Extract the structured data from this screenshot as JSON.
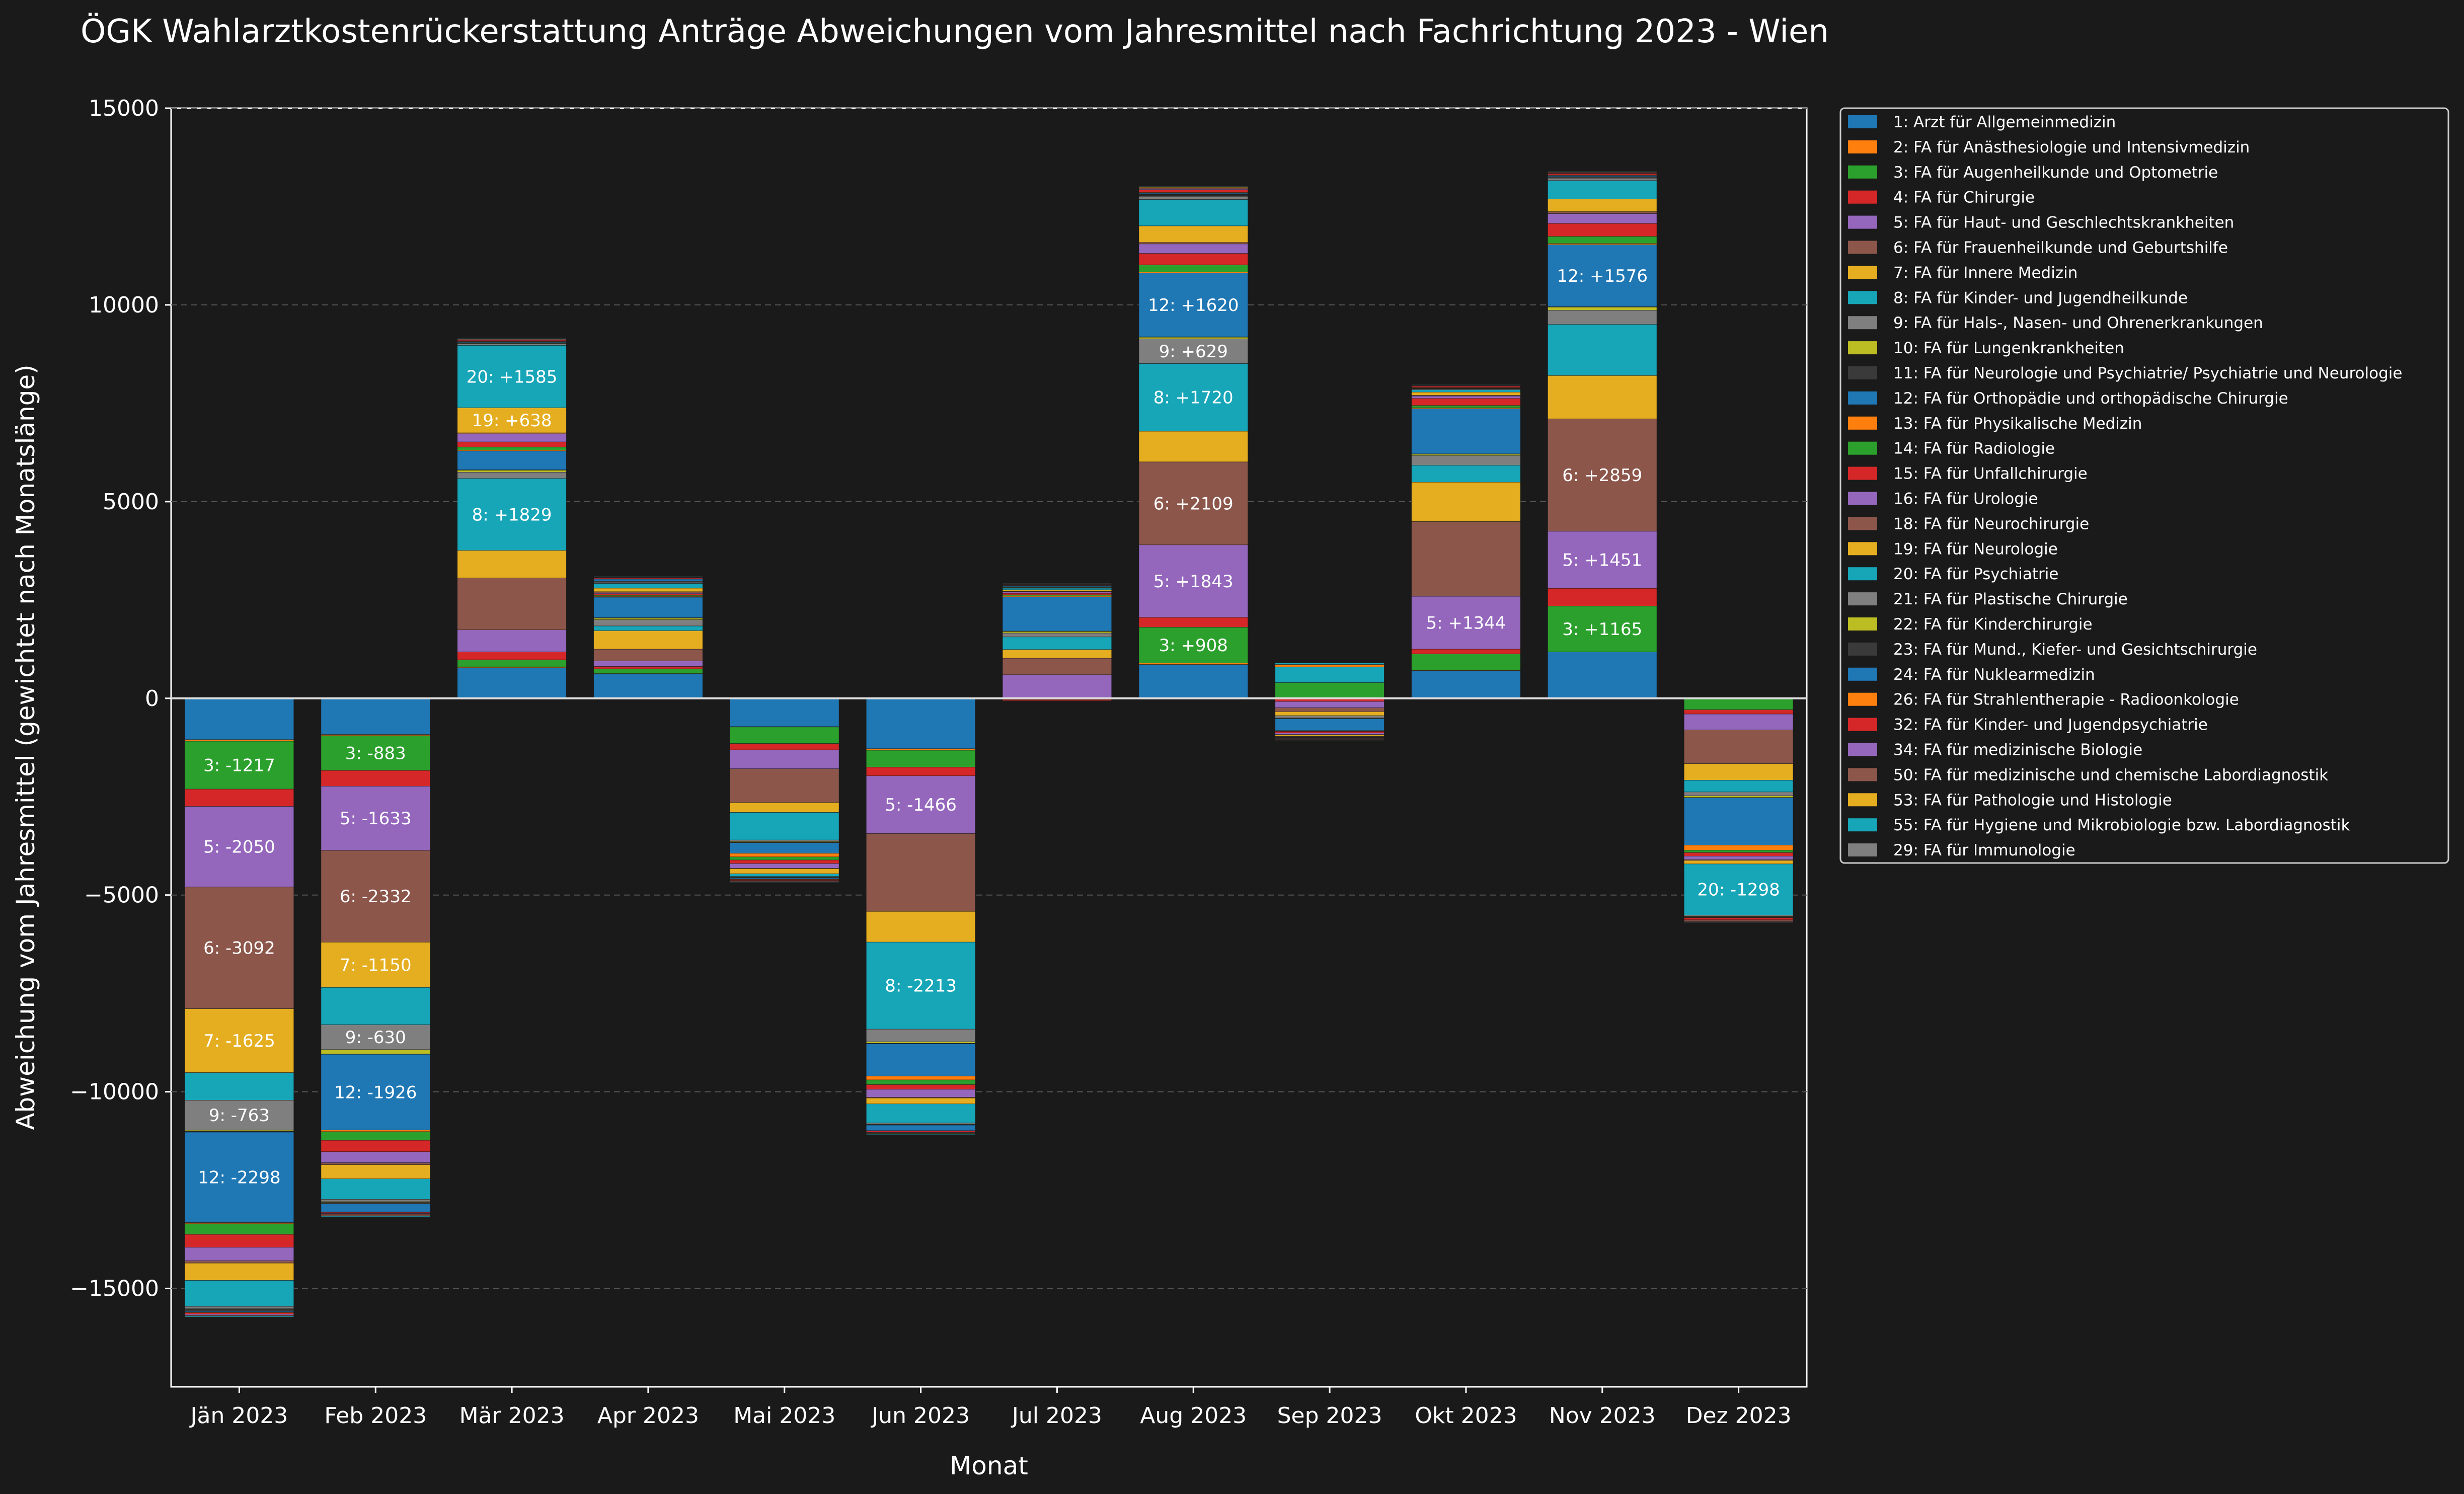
{
  "chart_data": {
    "type": "bar",
    "stacked": true,
    "title": "ÖGK Wahlarztkostenrückerstattung Anträge Abweichungen vom Jahresmittel nach Fachrichtung 2023 - Wien",
    "xlabel": "Monat",
    "ylabel": "Abweichung vom Jahresmittel (gewichtet nach Monatslänge)",
    "ylim": [
      -17500,
      15000
    ],
    "yticks": [
      15000,
      10000,
      5000,
      0,
      -5000,
      -10000,
      -15000
    ],
    "yticks_labels": [
      "15000",
      "10000",
      "5000",
      "0",
      "−5000",
      "−10000",
      "−15000"
    ],
    "grid": "horizontal dashed",
    "legend_position": "right",
    "categories": [
      "Jän 2023",
      "Feb 2023",
      "Mär 2023",
      "Apr 2023",
      "Mai 2023",
      "Jun 2023",
      "Jul 2023",
      "Aug 2023",
      "Sep 2023",
      "Okt 2023",
      "Nov 2023",
      "Dez 2023"
    ],
    "series": [
      {
        "name": "1: Arzt für Allgemeinmedizin",
        "color": "#1f77b4",
        "values": [
          -1050,
          -920,
          780,
          620,
          -720,
          -1280,
          0,
          860,
          0,
          700,
          1180,
          0
        ]
      },
      {
        "name": "2: FA für Anästhesiologie und Intensivmedizin",
        "color": "#ff7f0e",
        "values": [
          -40,
          -30,
          20,
          10,
          -10,
          -40,
          -30,
          40,
          -20,
          10,
          -20,
          -20
        ]
      },
      {
        "name": "3: FA für Augenheilkunde und Optometrie",
        "color": "#2ca02c",
        "values": [
          -1217,
          -883,
          180,
          120,
          -420,
          -430,
          0,
          908,
          400,
          420,
          1165,
          -270
        ]
      },
      {
        "name": "4: FA für Chirurgie",
        "color": "#d62728",
        "values": [
          -440,
          -400,
          200,
          60,
          -160,
          -220,
          -30,
          250,
          -60,
          120,
          450,
          -110
        ]
      },
      {
        "name": "5: FA für Haut- und Geschlechtskrankheiten",
        "color": "#9467bd",
        "values": [
          -2050,
          -1633,
          560,
          140,
          -480,
          -1466,
          600,
          1843,
          -160,
          1344,
          1451,
          -400
        ]
      },
      {
        "name": "6: FA für Frauenheilkunde und Geburtshilfe",
        "color": "#8c564b",
        "values": [
          -3092,
          -2332,
          1320,
          300,
          -860,
          -1980,
          420,
          2109,
          -100,
          1900,
          2859,
          -860
        ]
      },
      {
        "name": "7: FA für Innere Medizin",
        "color": "#e5ae20",
        "values": [
          -1625,
          -1150,
          700,
          470,
          -250,
          -780,
          220,
          780,
          -100,
          1000,
          1100,
          -420
        ]
      },
      {
        "name": "8: FA für Kinder- und Jugendheilkunde",
        "color": "#17a5b8",
        "values": [
          -700,
          -950,
          1829,
          120,
          -700,
          -2213,
          320,
          1720,
          400,
          430,
          1300,
          -300
        ]
      },
      {
        "name": "9: FA für Hals-, Nasen- und Ohrenerkrankungen",
        "color": "#7f7f7f",
        "values": [
          -763,
          -630,
          160,
          160,
          -40,
          -320,
          100,
          629,
          -60,
          250,
          360,
          -100
        ]
      },
      {
        "name": "10: FA für Lungenkrankheiten",
        "color": "#bcbd22",
        "values": [
          -30,
          -110,
          50,
          40,
          -20,
          -40,
          40,
          40,
          -10,
          30,
          80,
          -40
        ]
      },
      {
        "name": "11: FA für Neurologie und Psychiatrie/ Psychiatrie und Neurologie",
        "color": "#3a3a3a",
        "values": [
          -20,
          -10,
          10,
          10,
          -10,
          -10,
          10,
          10,
          -10,
          10,
          10,
          -10
        ]
      },
      {
        "name": "12: FA für Orthopädie und orthopädische Chirurgie",
        "color": "#1f77b4",
        "values": [
          -2298,
          -1926,
          480,
          520,
          -270,
          -820,
          870,
          1620,
          -300,
          1150,
          1576,
          -1200
        ]
      },
      {
        "name": "13: FA für Physikalische Medizin",
        "color": "#ff7f0e",
        "values": [
          -30,
          -40,
          20,
          20,
          -90,
          -100,
          20,
          30,
          60,
          20,
          30,
          -130
        ]
      },
      {
        "name": "14: FA für Radiologie",
        "color": "#2ca02c",
        "values": [
          -270,
          -220,
          80,
          30,
          -80,
          -120,
          30,
          180,
          -20,
          60,
          180,
          -60
        ]
      },
      {
        "name": "15: FA für Unfallchirurgie",
        "color": "#d62728",
        "values": [
          -330,
          -290,
          130,
          40,
          -90,
          -120,
          40,
          290,
          -40,
          180,
          330,
          -90
        ]
      },
      {
        "name": "16: FA für Urologie",
        "color": "#9467bd",
        "values": [
          -340,
          -280,
          200,
          20,
          -120,
          -200,
          40,
          240,
          -40,
          60,
          250,
          -90
        ]
      },
      {
        "name": "18: FA für Neurochirurgie",
        "color": "#8c564b",
        "values": [
          -60,
          -50,
          30,
          30,
          -10,
          -20,
          10,
          40,
          -10,
          20,
          50,
          -20
        ]
      },
      {
        "name": "19: FA für Neurologie",
        "color": "#e5ae20",
        "values": [
          -440,
          -360,
          638,
          90,
          -130,
          -150,
          40,
          420,
          -30,
          80,
          320,
          -90
        ]
      },
      {
        "name": "20: FA für Psychiatrie",
        "color": "#17a5b8",
        "values": [
          -660,
          -520,
          1585,
          120,
          -70,
          -480,
          40,
          670,
          40,
          60,
          470,
          -1298
        ]
      },
      {
        "name": "21: FA für Plastische Chirurgie",
        "color": "#7f7f7f",
        "values": [
          -60,
          -60,
          40,
          30,
          -10,
          -30,
          10,
          80,
          -10,
          20,
          60,
          -30
        ]
      },
      {
        "name": "22: FA für Kinderchirurgie",
        "color": "#bcbd22",
        "values": [
          -20,
          -20,
          10,
          10,
          -10,
          -10,
          10,
          20,
          -10,
          10,
          10,
          -10
        ]
      },
      {
        "name": "23: FA für Mund., Kiefer- und Gesichtschirurgie",
        "color": "#3a3a3a",
        "values": [
          -40,
          -40,
          20,
          20,
          -20,
          -20,
          10,
          30,
          -10,
          10,
          30,
          -10
        ]
      },
      {
        "name": "24: FA für Nuklearmedizin",
        "color": "#1f77b4",
        "values": [
          -20,
          -200,
          20,
          50,
          -30,
          -140,
          20,
          30,
          -10,
          10,
          30,
          -10
        ]
      },
      {
        "name": "26: FA für Strahlentherapie - Radioonkologie",
        "color": "#ff7f0e",
        "values": [
          -20,
          -10,
          10,
          10,
          -10,
          -10,
          10,
          20,
          -10,
          10,
          10,
          -10
        ]
      },
      {
        "name": "32: FA für Kinder- und Jugendpsychiatrie",
        "color": "#d62728",
        "values": [
          -40,
          -30,
          30,
          20,
          -20,
          -30,
          10,
          60,
          -10,
          30,
          40,
          -50
        ]
      },
      {
        "name": "34: FA für medizinische Biologie",
        "color": "#9467bd",
        "values": [
          -20,
          -20,
          10,
          10,
          -10,
          -10,
          10,
          20,
          -10,
          10,
          10,
          -10
        ]
      },
      {
        "name": "50: FA für medizinische und chemische Labordiagnostik",
        "color": "#8c564b",
        "values": [
          -20,
          -40,
          20,
          10,
          -20,
          -20,
          10,
          30,
          -10,
          10,
          20,
          -40
        ]
      },
      {
        "name": "53: FA für Pathologie und Histologie",
        "color": "#e5ae20",
        "values": [
          -10,
          -10,
          10,
          10,
          -10,
          -10,
          10,
          20,
          -10,
          10,
          10,
          -10
        ]
      },
      {
        "name": "55: FA für Hygiene und Mikrobiologie bzw. Labordiagnostik",
        "color": "#17a5b8",
        "values": [
          -20,
          -20,
          10,
          10,
          -10,
          -20,
          10,
          20,
          -10,
          10,
          10,
          -10
        ]
      },
      {
        "name": "29: FA für Immunologie",
        "color": "#7f7f7f",
        "values": [
          -10,
          -10,
          10,
          10,
          -10,
          -10,
          10,
          10,
          -10,
          10,
          10,
          -10
        ]
      }
    ],
    "segment_labels": [
      [
        "3: -1217",
        "5: -2050",
        "6: -3092",
        "7: -1625",
        "9: -763",
        "12: -2298"
      ],
      [
        "3: -883",
        "5: -1633",
        "6: -2332",
        "7: -1150",
        "9: -630",
        "12: -1926"
      ],
      [
        "8: +1829",
        "19: +638",
        "20: +1585"
      ],
      [],
      [],
      [
        "5: -1466",
        "8: -2213"
      ],
      [],
      [
        "3: +908",
        "5: +1843",
        "6: +2109",
        "8: +1720",
        "9: +629",
        "12: +1620"
      ],
      [],
      [
        "5: +1344"
      ],
      [
        "3: +1165",
        "5: +1451",
        "6: +2859",
        "12: +1576"
      ],
      [
        "20: -1298"
      ]
    ]
  }
}
